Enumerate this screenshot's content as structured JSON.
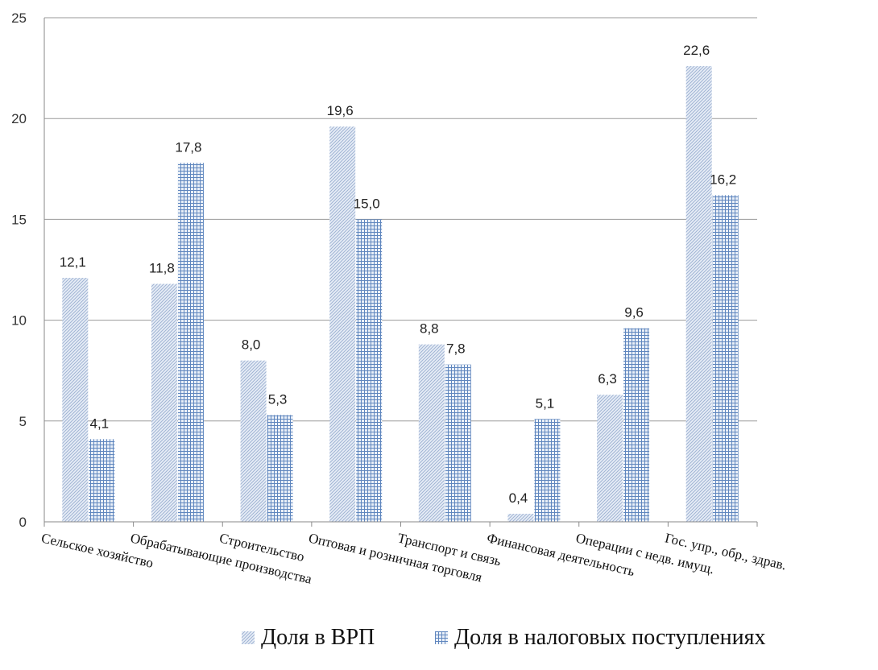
{
  "chart_data": {
    "type": "bar",
    "categories": [
      "Сельское хозяйство",
      "Обрабатывающие производства",
      "Строительство",
      "Оптовая и розничная торговля",
      "Транспорт и связь",
      "Финансовая деятельность",
      "Операции с недв. имущ.",
      "Гос. упр.,  обр., здрав."
    ],
    "series": [
      {
        "name": "Доля в ВРП",
        "values": [
          12.1,
          11.8,
          8.0,
          19.6,
          8.8,
          0.4,
          6.3,
          22.6
        ],
        "labels": [
          "12,1",
          "11,8",
          "8,0",
          "19,6",
          "8,8",
          "0,4",
          "6,3",
          "22,6"
        ],
        "color": "#a9bbd6",
        "pattern": "diagonal-hatch"
      },
      {
        "name": "Доля в налоговых  поступлениях",
        "values": [
          4.1,
          17.8,
          5.3,
          15.0,
          7.8,
          5.1,
          9.6,
          16.2
        ],
        "labels": [
          "4,1",
          "17,8",
          "5,3",
          "15,0",
          "7,8",
          "5,1",
          "9,6",
          "16,2"
        ],
        "color": "#5f86be",
        "pattern": "grid"
      }
    ],
    "title": "",
    "xlabel": "",
    "ylabel": "",
    "ylim": [
      0,
      25
    ],
    "yticks": [
      "0",
      "5",
      "10",
      "15",
      "20",
      "25"
    ],
    "grid": true,
    "legend_position": "bottom"
  }
}
